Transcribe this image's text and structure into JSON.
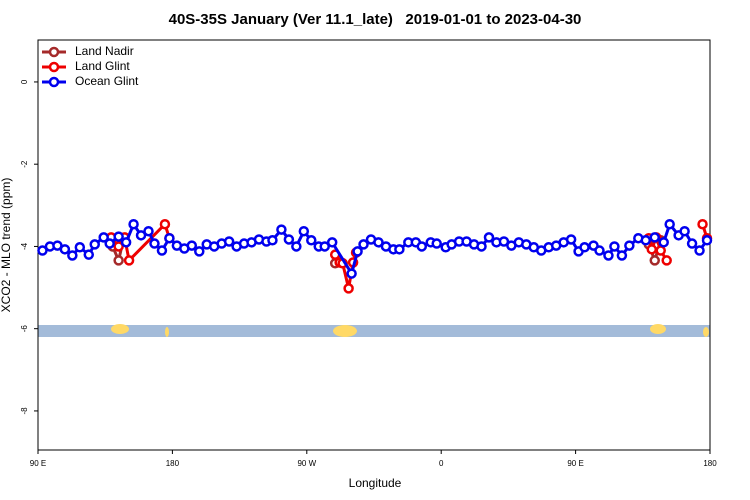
{
  "chart_data": {
    "type": "line",
    "title": "40S-35S January (Ver 11.1_late)   2019-01-01 to 2023-04-30",
    "x_label": "Longitude",
    "y_label": "XCO2 - MLO trend (ppm)",
    "xlim": [
      90,
      540
    ],
    "xticks": [
      {
        "value": 90,
        "label": "90 E"
      },
      {
        "value": 180,
        "label": "180"
      },
      {
        "value": 270,
        "label": "90 W"
      },
      {
        "value": 360,
        "label": "0"
      },
      {
        "value": 450,
        "label": "90 E"
      },
      {
        "value": 540,
        "label": "180"
      }
    ],
    "ylim": [
      -8.95,
      1.02
    ],
    "yticks": [
      0,
      -2,
      -4,
      -6,
      -8
    ],
    "legend": "top-left",
    "series": [
      {
        "name": "Land Nadir",
        "color": "#a52a2a",
        "x": [
          140,
          144,
          147,
          200,
          289,
          294,
          400,
          499,
          503,
          507
        ],
        "values": [
          -4.0,
          -4.34,
          -3.85,
          null,
          -4.41,
          -4.41,
          null,
          -3.95,
          -4.34,
          -3.85
        ]
      },
      {
        "name": "Land Glint",
        "color": "#ee0000",
        "x": [
          139,
          144,
          148,
          151,
          175,
          178,
          230,
          289,
          292,
          294,
          298,
          301,
          303,
          400,
          499,
          501,
          504,
          507,
          511,
          520,
          535,
          538
        ],
        "values": [
          -3.78,
          -4.0,
          -3.78,
          -4.34,
          -3.46,
          -3.8,
          null,
          -4.2,
          -4.39,
          -4.41,
          -5.02,
          -4.39,
          -4.15,
          null,
          -3.8,
          -4.07,
          -3.78,
          -4.1,
          -4.34,
          null,
          -3.46,
          -3.8
        ]
      },
      {
        "name": "Ocean Glint",
        "color": "#0000ee",
        "x": [
          93,
          98,
          103,
          108,
          113,
          118,
          124,
          128,
          134,
          138,
          144,
          149,
          154,
          159,
          164,
          168,
          173,
          178,
          183,
          188,
          193,
          198,
          203,
          208,
          213,
          218,
          223,
          228,
          233,
          238,
          243,
          247,
          253,
          258,
          263,
          268,
          273,
          278,
          282,
          287,
          300,
          304,
          308,
          313,
          318,
          323,
          328,
          332,
          338,
          343,
          347,
          353,
          357,
          363,
          367,
          372,
          377,
          382,
          387,
          392,
          397,
          402,
          407,
          412,
          417,
          422,
          427,
          432,
          437,
          442,
          447,
          452,
          456,
          462,
          466,
          472,
          476,
          481,
          486,
          492,
          497,
          503,
          509,
          513,
          519,
          523,
          528,
          533,
          538
        ],
        "values": [
          -4.1,
          -4.0,
          -3.98,
          -4.07,
          -4.22,
          -4.02,
          -4.2,
          -3.95,
          -3.78,
          -3.93,
          -3.76,
          -3.9,
          -3.46,
          -3.73,
          -3.63,
          -3.93,
          -4.1,
          -3.8,
          -3.98,
          -4.05,
          -3.98,
          -4.12,
          -3.95,
          -4.0,
          -3.93,
          -3.88,
          -4.0,
          -3.93,
          -3.9,
          -3.83,
          -3.88,
          -3.85,
          -3.59,
          -3.83,
          -4.0,
          -3.63,
          -3.85,
          -4.0,
          -4.0,
          -3.9,
          -4.66,
          -4.12,
          -3.95,
          -3.83,
          -3.9,
          -4.0,
          -4.07,
          -4.07,
          -3.9,
          -3.9,
          -4.0,
          -3.9,
          -3.93,
          -4.02,
          -3.95,
          -3.88,
          -3.88,
          -3.95,
          -4.0,
          -3.78,
          -3.9,
          -3.88,
          -3.98,
          -3.9,
          -3.95,
          -4.02,
          -4.1,
          -4.02,
          -3.98,
          -3.9,
          -3.83,
          -4.12,
          -4.02,
          -3.98,
          -4.1,
          -4.22,
          -4.0,
          -4.22,
          -3.98,
          -3.8,
          -3.85,
          -3.78,
          -3.9,
          -3.46,
          -3.73,
          -3.63,
          -3.93,
          -4.1,
          -3.85
        ]
      }
    ]
  }
}
